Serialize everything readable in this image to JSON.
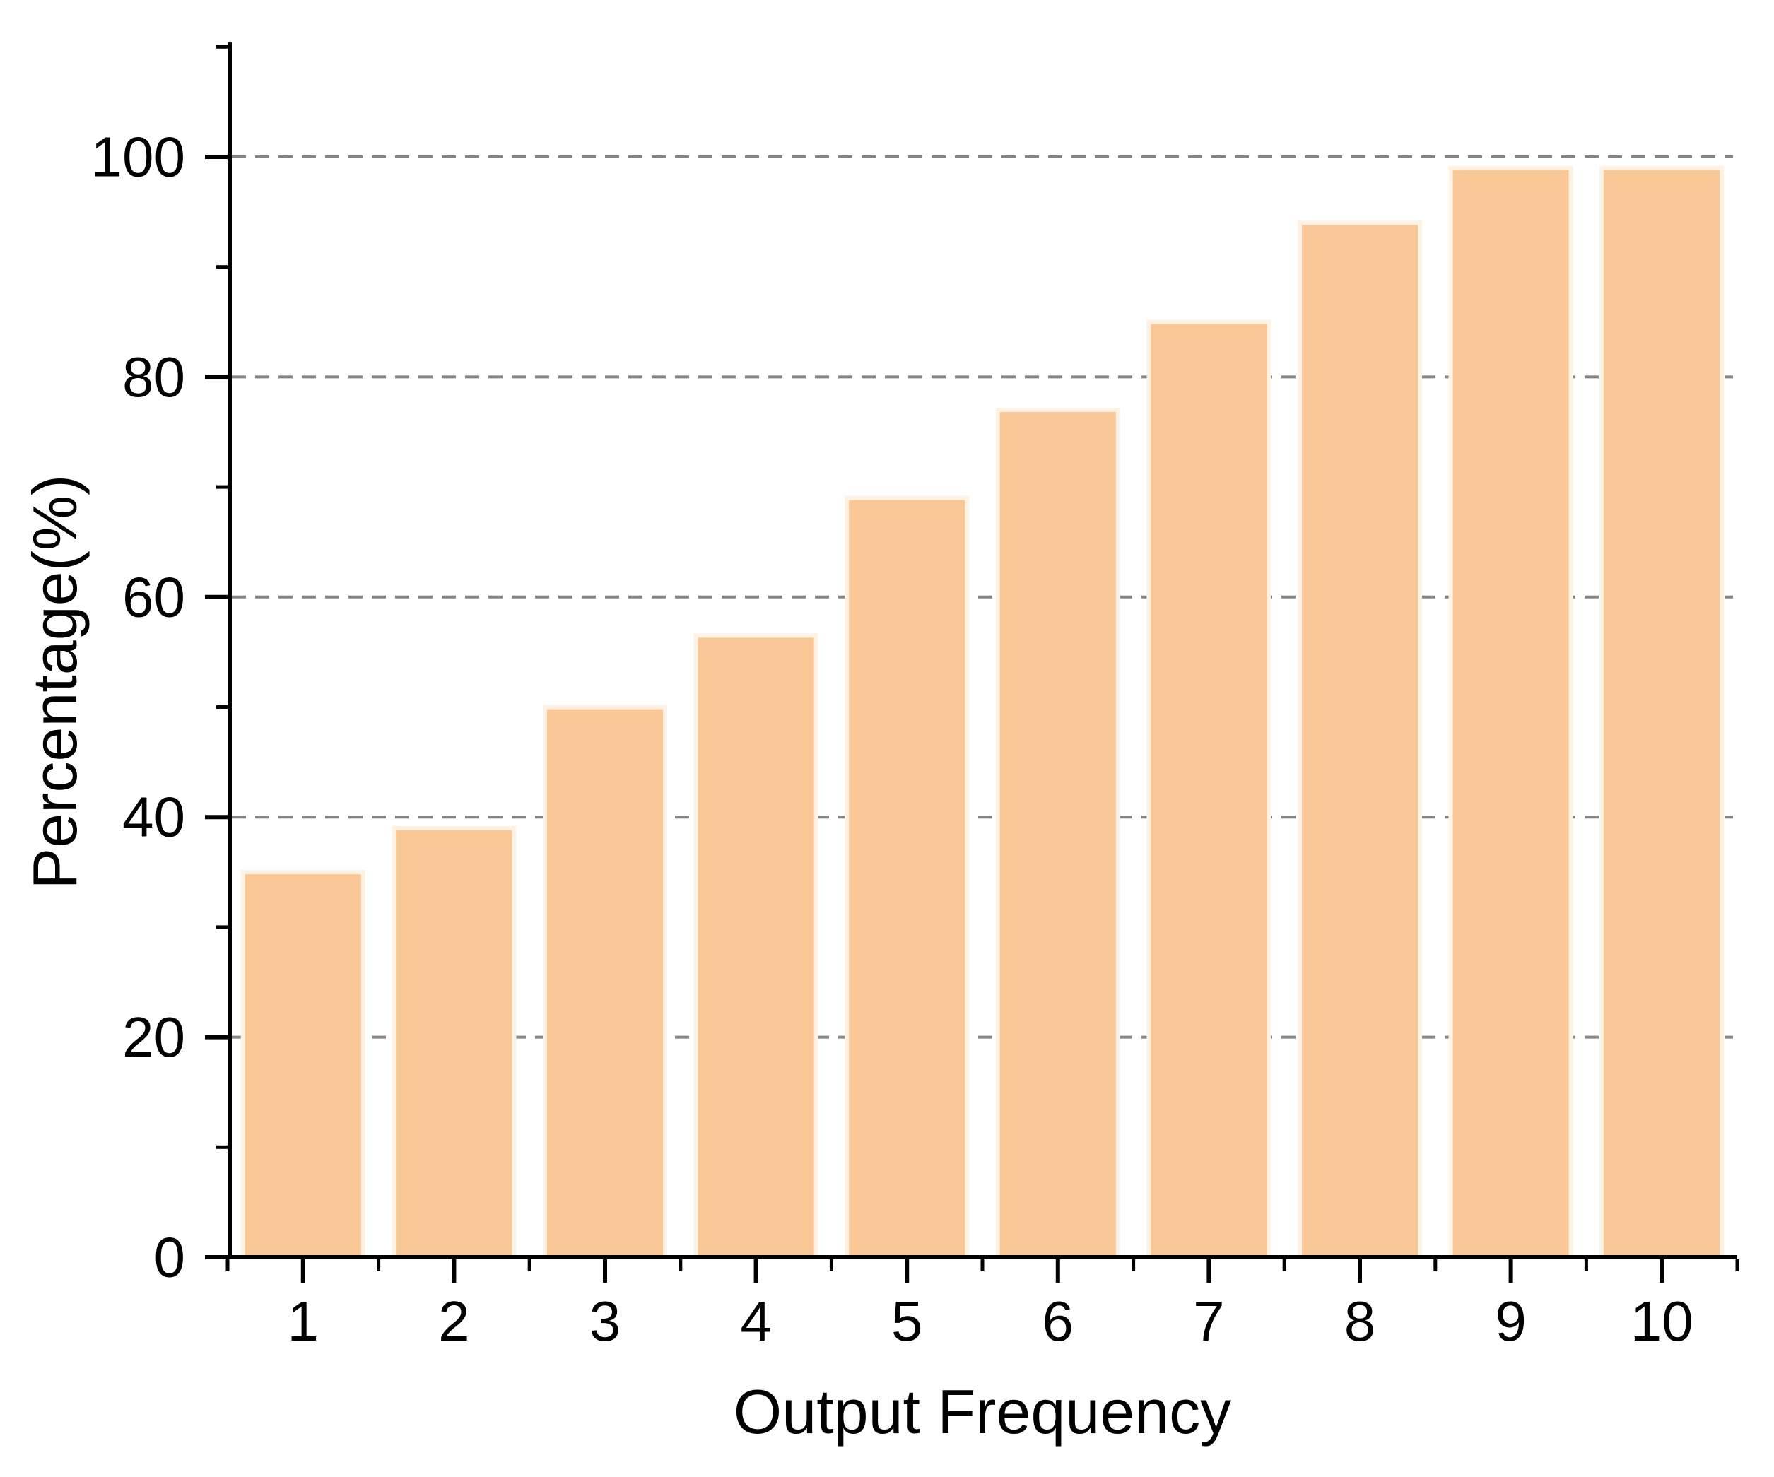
{
  "chart_data": {
    "type": "bar",
    "categories": [
      "1",
      "2",
      "3",
      "4",
      "5",
      "6",
      "7",
      "8",
      "9",
      "10"
    ],
    "values": [
      35,
      39,
      50,
      56.5,
      69,
      77,
      85,
      94,
      99,
      99
    ],
    "title": "",
    "xlabel": "Output Frequency",
    "ylabel": "Percentage(%)",
    "ylim": [
      0,
      110.4
    ],
    "ytick_major": [
      0,
      20,
      40,
      60,
      80,
      100
    ],
    "ytick_minor": [
      10,
      30,
      50,
      70,
      90,
      110
    ],
    "gridline_values": [
      20,
      40,
      60,
      80,
      100
    ],
    "grid_style": "dashed",
    "grid_axis": "horizontal",
    "legend": "none",
    "colors": {
      "bar_fill": "#fac896",
      "bar_edge": "#fdf2e4",
      "gridline": "#858585",
      "axis": "#000000",
      "text": "#000000",
      "background": "#ffffff"
    }
  }
}
